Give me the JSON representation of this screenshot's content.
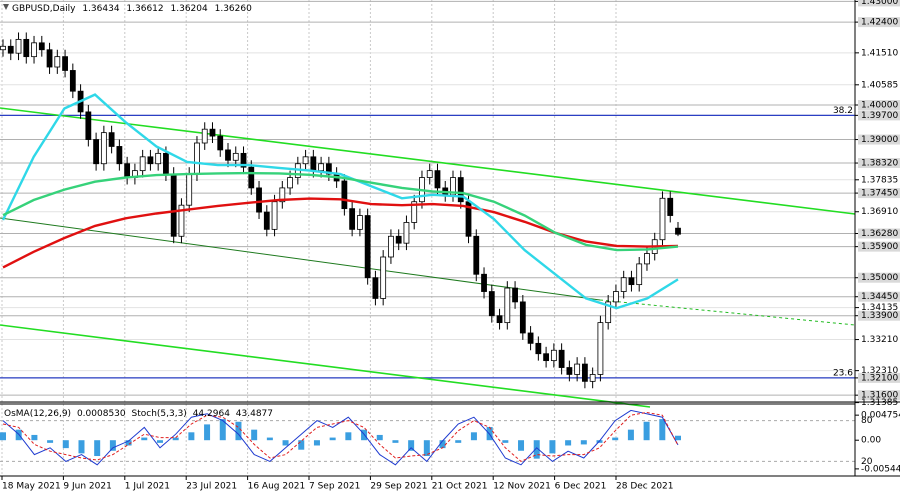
{
  "chart_data": {
    "type": "candlestick",
    "symbol": "GBPUSD,Daily",
    "ohlc_labels": [
      "1.36434",
      "1.36612",
      "1.36204",
      "1.36260"
    ],
    "x_labels": [
      "18 May 2021",
      "9 Jun 2021",
      "1 Jul 2021",
      "23 Jul 2021",
      "16 Aug 2021",
      "7 Sep 2021",
      "29 Sep 2021",
      "21 Oct 2021",
      "12 Nov 2021",
      "6 Dec 2021",
      "28 Dec 2021"
    ],
    "ylim": [
      1.3146,
      1.4304
    ],
    "yticks": [
      {
        "value": 1.43,
        "label": "1.43000",
        "highlight": true
      },
      {
        "value": 1.424,
        "label": "1.42400",
        "highlight": true
      },
      {
        "value": 1.4151,
        "label": "1.41510",
        "highlight": false
      },
      {
        "value": 1.40585,
        "label": "1.40585",
        "highlight": false
      },
      {
        "value": 1.4,
        "label": "1.40000",
        "highlight": true
      },
      {
        "value": 1.397,
        "label": "1.39700",
        "highlight": true
      },
      {
        "value": 1.39,
        "label": "1.39000",
        "highlight": true
      },
      {
        "value": 1.3832,
        "label": "1.38320",
        "highlight": true
      },
      {
        "value": 1.37835,
        "label": "1.37835",
        "highlight": false
      },
      {
        "value": 1.3745,
        "label": "1.37450",
        "highlight": true
      },
      {
        "value": 1.3691,
        "label": "1.36910",
        "highlight": false
      },
      {
        "value": 1.3628,
        "label": "1.36280",
        "highlight": true
      },
      {
        "value": 1.359,
        "label": "1.35900",
        "highlight": true
      },
      {
        "value": 1.35,
        "label": "1.35000",
        "highlight": true
      },
      {
        "value": 1.3445,
        "label": "1.34450",
        "highlight": true
      },
      {
        "value": 1.34135,
        "label": "1.34135",
        "highlight": false
      },
      {
        "value": 1.339,
        "label": "1.33900",
        "highlight": true
      },
      {
        "value": 1.3321,
        "label": "1.33210",
        "highlight": false
      },
      {
        "value": 1.3231,
        "label": "1.32310",
        "highlight": false
      },
      {
        "value": 1.321,
        "label": "1.32100",
        "highlight": true
      },
      {
        "value": 1.316,
        "label": "1.31600",
        "highlight": true
      },
      {
        "value": 1.31385,
        "label": "1.31385",
        "highlight": false
      }
    ],
    "fib_levels": [
      {
        "value": 1.397,
        "label": "38.2",
        "color": "#2b3fc4"
      },
      {
        "value": 1.321,
        "label": "23.6",
        "color": "#2b3fc4"
      }
    ],
    "candles": {
      "open": [
        1.416,
        1.417,
        1.415,
        1.419,
        1.414,
        1.418,
        1.416,
        1.411,
        1.414,
        1.41,
        1.404,
        1.398,
        1.39,
        1.383,
        1.392,
        1.388,
        1.383,
        1.379,
        1.381,
        1.385,
        1.383,
        1.386,
        1.38,
        1.362,
        1.371,
        1.38,
        1.389,
        1.393,
        1.391,
        1.387,
        1.384,
        1.386,
        1.382,
        1.376,
        1.369,
        1.364,
        1.372,
        1.376,
        1.379,
        1.383,
        1.385,
        1.381,
        1.383,
        1.38,
        1.378,
        1.37,
        1.364,
        1.368,
        1.35,
        1.344,
        1.356,
        1.362,
        1.36,
        1.366,
        1.372,
        1.379,
        1.381,
        1.376,
        1.374,
        1.379,
        1.372,
        1.362,
        1.351,
        1.346,
        1.339,
        1.337,
        1.347,
        1.343,
        1.334,
        1.331,
        1.328,
        1.326,
        1.329,
        1.324,
        1.322,
        1.325,
        1.32,
        1.322,
        1.337,
        1.343,
        1.346,
        1.35,
        1.348,
        1.354,
        1.357,
        1.361,
        1.373,
        1.36434
      ],
      "high": [
        1.419,
        1.419,
        1.421,
        1.421,
        1.42,
        1.42,
        1.418,
        1.416,
        1.416,
        1.412,
        1.406,
        1.4,
        1.392,
        1.394,
        1.394,
        1.39,
        1.385,
        1.383,
        1.387,
        1.387,
        1.388,
        1.388,
        1.382,
        1.373,
        1.382,
        1.391,
        1.395,
        1.395,
        1.393,
        1.389,
        1.388,
        1.388,
        1.384,
        1.378,
        1.371,
        1.374,
        1.378,
        1.381,
        1.385,
        1.387,
        1.387,
        1.385,
        1.385,
        1.382,
        1.38,
        1.372,
        1.37,
        1.37,
        1.352,
        1.358,
        1.364,
        1.364,
        1.368,
        1.374,
        1.381,
        1.383,
        1.383,
        1.378,
        1.381,
        1.381,
        1.374,
        1.364,
        1.353,
        1.348,
        1.341,
        1.349,
        1.349,
        1.345,
        1.336,
        1.333,
        1.33,
        1.331,
        1.331,
        1.326,
        1.327,
        1.327,
        1.324,
        1.339,
        1.345,
        1.348,
        1.352,
        1.352,
        1.356,
        1.359,
        1.363,
        1.375,
        1.375,
        1.36612
      ],
      "low": [
        1.414,
        1.413,
        1.413,
        1.412,
        1.412,
        1.414,
        1.409,
        1.409,
        1.408,
        1.402,
        1.396,
        1.388,
        1.381,
        1.381,
        1.386,
        1.381,
        1.377,
        1.377,
        1.379,
        1.381,
        1.381,
        1.378,
        1.36,
        1.36,
        1.369,
        1.378,
        1.387,
        1.389,
        1.385,
        1.382,
        1.382,
        1.38,
        1.374,
        1.367,
        1.362,
        1.362,
        1.37,
        1.374,
        1.377,
        1.381,
        1.379,
        1.379,
        1.378,
        1.376,
        1.368,
        1.362,
        1.362,
        1.348,
        1.342,
        1.342,
        1.354,
        1.358,
        1.358,
        1.364,
        1.37,
        1.377,
        1.374,
        1.372,
        1.372,
        1.37,
        1.36,
        1.349,
        1.344,
        1.337,
        1.335,
        1.335,
        1.341,
        1.332,
        1.329,
        1.326,
        1.324,
        1.324,
        1.322,
        1.32,
        1.32,
        1.318,
        1.318,
        1.32,
        1.335,
        1.341,
        1.344,
        1.346,
        1.346,
        1.352,
        1.355,
        1.359,
        1.366,
        1.36204
      ],
      "close": [
        1.417,
        1.415,
        1.419,
        1.414,
        1.418,
        1.416,
        1.411,
        1.414,
        1.41,
        1.404,
        1.398,
        1.39,
        1.383,
        1.392,
        1.388,
        1.383,
        1.379,
        1.381,
        1.385,
        1.383,
        1.386,
        1.38,
        1.362,
        1.371,
        1.38,
        1.389,
        1.393,
        1.391,
        1.387,
        1.384,
        1.386,
        1.382,
        1.376,
        1.369,
        1.364,
        1.372,
        1.376,
        1.379,
        1.383,
        1.385,
        1.381,
        1.383,
        1.38,
        1.378,
        1.37,
        1.364,
        1.368,
        1.35,
        1.344,
        1.356,
        1.362,
        1.36,
        1.366,
        1.372,
        1.379,
        1.381,
        1.376,
        1.374,
        1.379,
        1.372,
        1.362,
        1.351,
        1.346,
        1.339,
        1.337,
        1.347,
        1.343,
        1.334,
        1.331,
        1.328,
        1.326,
        1.329,
        1.324,
        1.322,
        1.325,
        1.32,
        1.322,
        1.337,
        1.343,
        1.346,
        1.35,
        1.348,
        1.354,
        1.357,
        1.361,
        1.373,
        1.368,
        1.3626
      ]
    },
    "series": [
      {
        "color": "#e01010",
        "values": [
          1.353,
          1.3575,
          1.3615,
          1.365,
          1.3672,
          1.3686,
          1.3697,
          1.3708,
          1.3717,
          1.3725,
          1.3729,
          1.3727,
          1.3713,
          1.371,
          1.3713,
          1.3708,
          1.369,
          1.3662,
          1.363,
          1.3605,
          1.3592,
          1.359,
          1.3592
        ]
      },
      {
        "color": "#2fd8e8",
        "values": [
          1.3667,
          1.385,
          1.399,
          1.403,
          1.395,
          1.388,
          1.3835,
          1.3826,
          1.3826,
          1.3818,
          1.381,
          1.38,
          1.3765,
          1.373,
          1.374,
          1.3735,
          1.367,
          1.358,
          1.351,
          1.344,
          1.3412,
          1.344,
          1.3495
        ]
      },
      {
        "color": "#36d27a",
        "values": [
          1.3681,
          1.3725,
          1.3755,
          1.3778,
          1.379,
          1.3797,
          1.38,
          1.3802,
          1.3803,
          1.3802,
          1.3798,
          1.379,
          1.3775,
          1.376,
          1.375,
          1.3745,
          1.372,
          1.368,
          1.363,
          1.3595,
          1.358,
          1.3582,
          1.359
        ]
      }
    ],
    "osma": {
      "name": "OsMA(12,26,9)",
      "current_label": "0.0008530",
      "color": "#3a9ee0",
      "ylim": [
        -0.0066,
        0.0063
      ],
      "yticks": [
        {
          "value": 0.004754,
          "label": "0.0047540"
        },
        {
          "value": 0,
          "label": "0.00"
        },
        {
          "value": -0.00544,
          "label": "-0.0054400"
        }
      ],
      "values": [
        0.0015,
        0.002,
        0.001,
        -0.0005,
        -0.0015,
        -0.0025,
        -0.003,
        -0.002,
        -0.001,
        0.0005,
        -0.0005,
        0.0005,
        0.0015,
        0.003,
        0.004,
        0.0035,
        0.002,
        0.0005,
        -0.001,
        -0.0018,
        -0.001,
        0.0005,
        0.0015,
        0.002,
        0.001,
        -0.0005,
        -0.002,
        -0.003,
        -0.0015,
        -0.0005,
        0.0015,
        0.0025,
        -0.0005,
        -0.002,
        -0.0035,
        -0.0025,
        -0.001,
        -0.0008,
        -0.0005,
        0.0005,
        0.002,
        0.0035,
        0.004,
        0.00085
      ]
    },
    "stoch": {
      "name": "Stoch(5,3,3)",
      "ylim": [
        0,
        100
      ],
      "yticks": [
        80,
        20
      ],
      "main": {
        "color": "#1f3bd0",
        "values": [
          80,
          60,
          30,
          40,
          20,
          30,
          15,
          40,
          50,
          70,
          40,
          60,
          85,
          90,
          80,
          60,
          30,
          20,
          40,
          60,
          80,
          70,
          85,
          60,
          30,
          15,
          40,
          20,
          50,
          75,
          85,
          60,
          25,
          15,
          40,
          20,
          35,
          25,
          50,
          80,
          95,
          90,
          85,
          44.2964
        ]
      },
      "signal": {
        "color": "#e02020",
        "values": [
          75,
          70,
          45,
          35,
          30,
          25,
          22,
          30,
          45,
          60,
          55,
          55,
          75,
          88,
          85,
          70,
          45,
          25,
          30,
          50,
          70,
          75,
          80,
          70,
          45,
          25,
          28,
          30,
          40,
          65,
          80,
          70,
          40,
          20,
          30,
          28,
          30,
          30,
          40,
          65,
          88,
          92,
          88,
          43.4877
        ]
      }
    }
  }
}
